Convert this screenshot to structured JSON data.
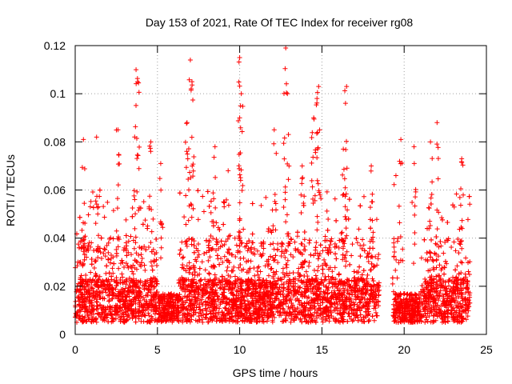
{
  "chart_data": {
    "type": "scatter",
    "title": "Day 153 of 2021, Rate Of TEC Index for receiver rg08",
    "xlabel": "GPS time / hours",
    "ylabel": "ROTI / TECUs",
    "xlim": [
      0,
      25
    ],
    "ylim": [
      0,
      0.12
    ],
    "x_ticks": [
      0,
      5,
      10,
      15,
      20,
      25
    ],
    "x_tick_labels": [
      "0",
      "5",
      "10",
      "15",
      "20",
      "25"
    ],
    "y_ticks": [
      0,
      0.02,
      0.04,
      0.06,
      0.08,
      0.1,
      0.12
    ],
    "y_tick_labels": [
      "0",
      "0.02",
      "0.04",
      "0.06",
      "0.08",
      "0.1",
      "0.12"
    ],
    "grid": true,
    "marker": "plus",
    "color": "#ff0000",
    "time_range_hours": [
      0,
      24
    ],
    "data_gap_hours": [
      18.5,
      19.3
    ],
    "typical_baseline": [
      0.005,
      0.02
    ],
    "peaks": [
      {
        "x": 0.5,
        "y": 0.081
      },
      {
        "x": 1.3,
        "y": 0.082
      },
      {
        "x": 2.6,
        "y": 0.085
      },
      {
        "x": 3.7,
        "y": 0.11
      },
      {
        "x": 3.8,
        "y": 0.105
      },
      {
        "x": 4.6,
        "y": 0.08
      },
      {
        "x": 5.2,
        "y": 0.071
      },
      {
        "x": 6.8,
        "y": 0.088
      },
      {
        "x": 7.0,
        "y": 0.114
      },
      {
        "x": 7.1,
        "y": 0.105
      },
      {
        "x": 8.5,
        "y": 0.078
      },
      {
        "x": 9.3,
        "y": 0.068
      },
      {
        "x": 10.0,
        "y": 0.115
      },
      {
        "x": 10.1,
        "y": 0.1
      },
      {
        "x": 10.0,
        "y": 0.09
      },
      {
        "x": 12.1,
        "y": 0.085
      },
      {
        "x": 12.8,
        "y": 0.119
      },
      {
        "x": 12.9,
        "y": 0.1
      },
      {
        "x": 13.8,
        "y": 0.07
      },
      {
        "x": 14.5,
        "y": 0.09
      },
      {
        "x": 14.8,
        "y": 0.103
      },
      {
        "x": 14.7,
        "y": 0.098
      },
      {
        "x": 16.3,
        "y": 0.077
      },
      {
        "x": 16.5,
        "y": 0.103
      },
      {
        "x": 18.0,
        "y": 0.07
      },
      {
        "x": 19.5,
        "y": 0.066
      },
      {
        "x": 19.8,
        "y": 0.081
      },
      {
        "x": 20.6,
        "y": 0.078
      },
      {
        "x": 21.6,
        "y": 0.08
      },
      {
        "x": 22.0,
        "y": 0.088
      },
      {
        "x": 23.5,
        "y": 0.073
      }
    ]
  }
}
